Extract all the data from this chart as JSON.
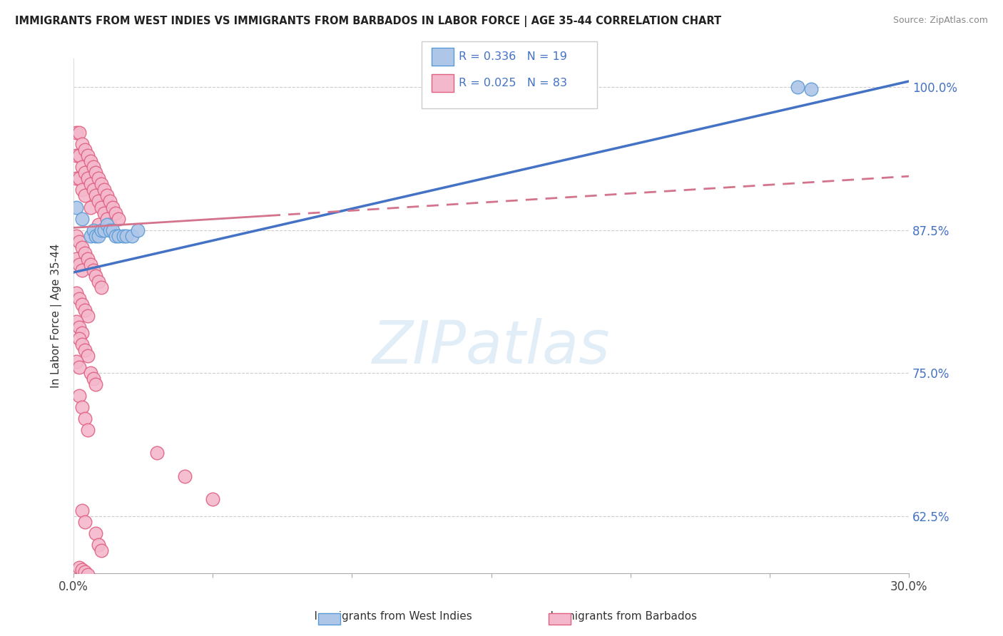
{
  "title": "IMMIGRANTS FROM WEST INDIES VS IMMIGRANTS FROM BARBADOS IN LABOR FORCE | AGE 35-44 CORRELATION CHART",
  "source": "Source: ZipAtlas.com",
  "ylabel": "In Labor Force | Age 35-44",
  "xlim": [
    0.0,
    0.3
  ],
  "ylim": [
    0.575,
    1.025
  ],
  "xticks": [
    0.0,
    0.05,
    0.1,
    0.15,
    0.2,
    0.25,
    0.3
  ],
  "xticklabels": [
    "0.0%",
    "",
    "",
    "",
    "",
    "",
    "30.0%"
  ],
  "ytick_positions": [
    0.625,
    0.75,
    0.875,
    1.0
  ],
  "ytick_labels": [
    "62.5%",
    "75.0%",
    "87.5%",
    "100.0%"
  ],
  "west_indies_color": "#aec6e8",
  "west_indies_edge": "#5b9bd5",
  "barbados_color": "#f4b8cc",
  "barbados_edge": "#e06080",
  "trend_blue": "#4472c4",
  "trend_pink": "#d4748c",
  "legend_R_blue": "0.336",
  "legend_N_blue": "19",
  "legend_R_pink": "0.025",
  "legend_N_pink": "83",
  "legend_color": "#4472c4",
  "watermark": "ZIPatlas",
  "trend_blue_x0": 0.0,
  "trend_blue_y0": 0.838,
  "trend_blue_x1": 0.3,
  "trend_blue_y1": 1.005,
  "trend_pink_x0": 0.0,
  "trend_pink_y0": 0.877,
  "trend_pink_x1": 0.3,
  "trend_pink_y1": 0.922,
  "trend_pink_solid_end": 0.07,
  "west_indies_x": [
    0.001,
    0.003,
    0.006,
    0.007,
    0.008,
    0.009,
    0.01,
    0.011,
    0.012,
    0.013,
    0.014,
    0.015,
    0.016,
    0.018,
    0.019,
    0.021,
    0.023,
    0.26,
    0.265
  ],
  "west_indies_y": [
    0.895,
    0.885,
    0.87,
    0.875,
    0.87,
    0.87,
    0.875,
    0.875,
    0.88,
    0.875,
    0.875,
    0.87,
    0.87,
    0.87,
    0.87,
    0.87,
    0.875,
    1.0,
    0.998
  ],
  "barbados_x": [
    0.001,
    0.001,
    0.001,
    0.002,
    0.002,
    0.002,
    0.003,
    0.003,
    0.003,
    0.004,
    0.004,
    0.004,
    0.005,
    0.005,
    0.006,
    0.006,
    0.006,
    0.007,
    0.007,
    0.008,
    0.008,
    0.009,
    0.009,
    0.009,
    0.01,
    0.01,
    0.011,
    0.011,
    0.012,
    0.012,
    0.013,
    0.013,
    0.014,
    0.015,
    0.016,
    0.001,
    0.001,
    0.002,
    0.002,
    0.003,
    0.003,
    0.004,
    0.005,
    0.006,
    0.007,
    0.008,
    0.009,
    0.01,
    0.001,
    0.002,
    0.003,
    0.004,
    0.005,
    0.001,
    0.002,
    0.003,
    0.002,
    0.003,
    0.004,
    0.005,
    0.001,
    0.002,
    0.006,
    0.007,
    0.008,
    0.002,
    0.003,
    0.004,
    0.005,
    0.03,
    0.04,
    0.05,
    0.003,
    0.004,
    0.008,
    0.009,
    0.01,
    0.002,
    0.003,
    0.004,
    0.005
  ],
  "barbados_y": [
    0.96,
    0.94,
    0.92,
    0.96,
    0.94,
    0.92,
    0.95,
    0.93,
    0.91,
    0.945,
    0.925,
    0.905,
    0.94,
    0.92,
    0.935,
    0.915,
    0.895,
    0.93,
    0.91,
    0.925,
    0.905,
    0.92,
    0.9,
    0.88,
    0.915,
    0.895,
    0.91,
    0.89,
    0.905,
    0.885,
    0.9,
    0.88,
    0.895,
    0.89,
    0.885,
    0.87,
    0.85,
    0.865,
    0.845,
    0.86,
    0.84,
    0.855,
    0.85,
    0.845,
    0.84,
    0.835,
    0.83,
    0.825,
    0.82,
    0.815,
    0.81,
    0.805,
    0.8,
    0.795,
    0.79,
    0.785,
    0.78,
    0.775,
    0.77,
    0.765,
    0.76,
    0.755,
    0.75,
    0.745,
    0.74,
    0.73,
    0.72,
    0.71,
    0.7,
    0.68,
    0.66,
    0.64,
    0.63,
    0.62,
    0.61,
    0.6,
    0.595,
    0.58,
    0.578,
    0.576,
    0.574
  ]
}
